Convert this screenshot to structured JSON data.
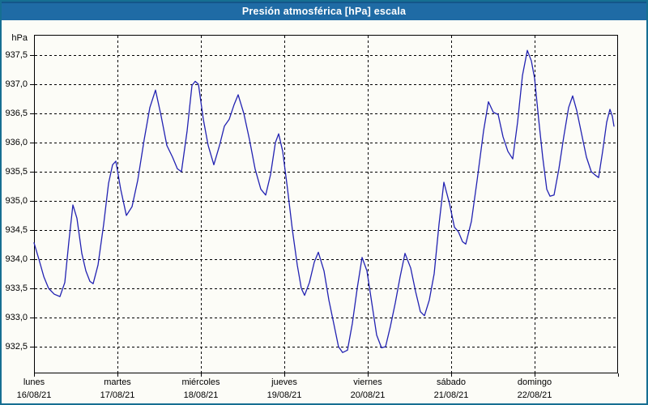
{
  "window": {
    "title": "Presión atmosférica [hPa] escala",
    "colors": {
      "titlebar_bg": "#1f6ba5",
      "titlebar_text": "#ffffff",
      "frame_border": "#166f92",
      "background": "#fcfcf7",
      "plot_background": "#fdfdfa",
      "grid_color": "#000000",
      "line_color": "#2222b2"
    }
  },
  "chart_data": {
    "type": "line",
    "title": "Presión atmosférica [hPa] escala",
    "ylabel": "hPa",
    "series_name": "Presión atmosférica",
    "grid": "dashed",
    "legend": "none",
    "y_ticks": [
      "937,5",
      "937,0",
      "936,5",
      "936,0",
      "935,5",
      "935,0",
      "934,5",
      "934,0",
      "933,5",
      "933,0",
      "932,5"
    ],
    "y_tick_values": [
      937.5,
      937.0,
      936.5,
      936.0,
      935.5,
      935.0,
      934.5,
      934.0,
      933.5,
      933.0,
      932.5
    ],
    "ylim": [
      932.05,
      937.85
    ],
    "x_unit": "days",
    "xlim_days": [
      0,
      7
    ],
    "days": [
      {
        "name": "lunes",
        "date": "16/08/21"
      },
      {
        "name": "martes",
        "date": "17/08/21"
      },
      {
        "name": "miércoles",
        "date": "18/08/21"
      },
      {
        "name": "jueves",
        "date": "19/08/21"
      },
      {
        "name": "viernes",
        "date": "20/08/21"
      },
      {
        "name": "sábado",
        "date": "21/08/21"
      },
      {
        "name": "domingo",
        "date": "22/08/21"
      }
    ],
    "points": [
      [
        0.0,
        934.28
      ],
      [
        0.058,
        934.0
      ],
      [
        0.117,
        933.7
      ],
      [
        0.175,
        933.5
      ],
      [
        0.243,
        933.4
      ],
      [
        0.311,
        933.36
      ],
      [
        0.369,
        933.6
      ],
      [
        0.417,
        934.3
      ],
      [
        0.466,
        934.93
      ],
      [
        0.515,
        934.7
      ],
      [
        0.573,
        934.1
      ],
      [
        0.621,
        933.8
      ],
      [
        0.67,
        933.62
      ],
      [
        0.709,
        933.58
      ],
      [
        0.767,
        933.9
      ],
      [
        0.835,
        934.6
      ],
      [
        0.893,
        935.3
      ],
      [
        0.942,
        935.62
      ],
      [
        0.981,
        935.68
      ],
      [
        1.039,
        935.2
      ],
      [
        1.107,
        934.75
      ],
      [
        1.175,
        934.9
      ],
      [
        1.243,
        935.35
      ],
      [
        1.32,
        936.05
      ],
      [
        1.388,
        936.6
      ],
      [
        1.456,
        936.9
      ],
      [
        1.524,
        936.45
      ],
      [
        1.592,
        935.95
      ],
      [
        1.66,
        935.75
      ],
      [
        1.718,
        935.55
      ],
      [
        1.767,
        935.5
      ],
      [
        1.835,
        936.2
      ],
      [
        1.893,
        936.98
      ],
      [
        1.932,
        937.05
      ],
      [
        1.971,
        937.0
      ],
      [
        2.029,
        936.4
      ],
      [
        2.087,
        935.95
      ],
      [
        2.155,
        935.62
      ],
      [
        2.223,
        935.95
      ],
      [
        2.282,
        936.28
      ],
      [
        2.34,
        936.4
      ],
      [
        2.398,
        936.65
      ],
      [
        2.447,
        936.82
      ],
      [
        2.515,
        936.5
      ],
      [
        2.583,
        936.05
      ],
      [
        2.65,
        935.55
      ],
      [
        2.718,
        935.2
      ],
      [
        2.777,
        935.1
      ],
      [
        2.835,
        935.45
      ],
      [
        2.893,
        936.0
      ],
      [
        2.932,
        936.15
      ],
      [
        2.981,
        935.85
      ],
      [
        3.039,
        935.2
      ],
      [
        3.097,
        934.5
      ],
      [
        3.155,
        933.9
      ],
      [
        3.204,
        933.5
      ],
      [
        3.243,
        933.38
      ],
      [
        3.301,
        933.6
      ],
      [
        3.359,
        933.95
      ],
      [
        3.408,
        934.12
      ],
      [
        3.476,
        933.8
      ],
      [
        3.534,
        933.3
      ],
      [
        3.592,
        932.9
      ],
      [
        3.65,
        932.5
      ],
      [
        3.699,
        932.4
      ],
      [
        3.757,
        932.44
      ],
      [
        3.816,
        932.9
      ],
      [
        3.874,
        933.5
      ],
      [
        3.932,
        934.03
      ],
      [
        3.99,
        933.8
      ],
      [
        4.049,
        933.25
      ],
      [
        4.107,
        932.7
      ],
      [
        4.165,
        932.48
      ],
      [
        4.214,
        932.5
      ],
      [
        4.272,
        932.85
      ],
      [
        4.33,
        933.25
      ],
      [
        4.388,
        933.7
      ],
      [
        4.447,
        934.1
      ],
      [
        4.515,
        933.85
      ],
      [
        4.573,
        933.45
      ],
      [
        4.631,
        933.1
      ],
      [
        4.68,
        933.03
      ],
      [
        4.738,
        933.3
      ],
      [
        4.796,
        933.75
      ],
      [
        4.854,
        934.6
      ],
      [
        4.913,
        935.32
      ],
      [
        4.981,
        934.95
      ],
      [
        5.039,
        934.55
      ],
      [
        5.087,
        934.47
      ],
      [
        5.136,
        934.3
      ],
      [
        5.175,
        934.26
      ],
      [
        5.243,
        934.65
      ],
      [
        5.311,
        935.35
      ],
      [
        5.388,
        936.2
      ],
      [
        5.447,
        936.7
      ],
      [
        5.505,
        936.52
      ],
      [
        5.563,
        936.48
      ],
      [
        5.621,
        936.1
      ],
      [
        5.68,
        935.85
      ],
      [
        5.738,
        935.72
      ],
      [
        5.796,
        936.35
      ],
      [
        5.854,
        937.15
      ],
      [
        5.913,
        937.58
      ],
      [
        5.961,
        937.4
      ],
      [
        6.0,
        937.1
      ],
      [
        6.049,
        936.4
      ],
      [
        6.097,
        935.75
      ],
      [
        6.146,
        935.2
      ],
      [
        6.184,
        935.08
      ],
      [
        6.233,
        935.1
      ],
      [
        6.291,
        935.55
      ],
      [
        6.35,
        936.1
      ],
      [
        6.408,
        936.6
      ],
      [
        6.456,
        936.8
      ],
      [
        6.505,
        936.55
      ],
      [
        6.563,
        936.15
      ],
      [
        6.621,
        935.75
      ],
      [
        6.68,
        935.5
      ],
      [
        6.728,
        935.44
      ],
      [
        6.767,
        935.4
      ],
      [
        6.816,
        935.85
      ],
      [
        6.864,
        936.35
      ],
      [
        6.903,
        936.57
      ],
      [
        6.932,
        936.45
      ],
      [
        6.951,
        936.28
      ]
    ]
  }
}
